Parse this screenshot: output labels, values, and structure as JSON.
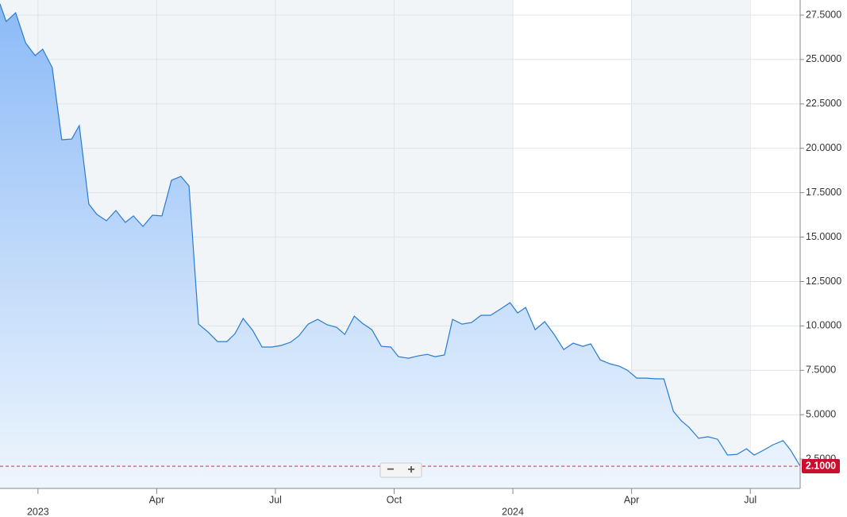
{
  "chart_data": {
    "type": "area",
    "x": [
      2022.92,
      2022.933,
      2022.953,
      2022.974,
      2022.994,
      2023.01,
      2023.03,
      2023.05,
      2023.071,
      2023.087,
      2023.107,
      2023.124,
      2023.144,
      2023.164,
      2023.184,
      2023.201,
      2023.221,
      2023.241,
      2023.261,
      2023.281,
      2023.301,
      2023.318,
      2023.338,
      2023.358,
      2023.378,
      2023.398,
      2023.415,
      2023.432,
      2023.452,
      2023.472,
      2023.492,
      2023.512,
      2023.532,
      2023.549,
      2023.569,
      2023.589,
      2023.609,
      2023.629,
      2023.646,
      2023.666,
      2023.683,
      2023.703,
      2023.723,
      2023.743,
      2023.759,
      2023.78,
      2023.8,
      2023.82,
      2023.836,
      2023.856,
      2023.873,
      2023.893,
      2023.913,
      2023.933,
      2023.953,
      2023.974,
      2023.994,
      2024.01,
      2024.027,
      2024.047,
      2024.067,
      2024.087,
      2024.107,
      2024.127,
      2024.147,
      2024.164,
      2024.184,
      2024.204,
      2024.224,
      2024.241,
      2024.261,
      2024.281,
      2024.301,
      2024.318,
      2024.338,
      2024.355,
      2024.371,
      2024.391,
      2024.411,
      2024.431,
      2024.452,
      2024.472,
      2024.492,
      2024.508,
      2024.528,
      2024.548,
      2024.569,
      2024.585,
      2024.605
    ],
    "values": [
      28.13,
      27.14,
      27.63,
      25.93,
      25.22,
      25.58,
      24.55,
      20.48,
      20.52,
      21.28,
      16.86,
      16.28,
      15.92,
      16.5,
      15.83,
      16.19,
      15.6,
      16.23,
      16.19,
      18.2,
      18.42,
      17.88,
      10.1,
      9.66,
      9.12,
      9.12,
      9.57,
      10.42,
      9.75,
      8.81,
      8.81,
      8.9,
      9.08,
      9.43,
      10.1,
      10.37,
      10.06,
      9.92,
      9.52,
      10.55,
      10.15,
      9.79,
      8.85,
      8.81,
      8.27,
      8.18,
      8.31,
      8.4,
      8.27,
      8.36,
      10.37,
      10.1,
      10.19,
      10.6,
      10.6,
      10.95,
      11.31,
      10.73,
      11.04,
      9.79,
      10.24,
      9.52,
      8.67,
      9.03,
      8.85,
      8.99,
      8.09,
      7.87,
      7.73,
      7.51,
      7.06,
      7.06,
      7.02,
      7.02,
      5.19,
      4.65,
      4.29,
      3.67,
      3.76,
      3.62,
      2.73,
      2.77,
      3.08,
      2.73,
      3.0,
      3.31,
      3.54,
      3.0,
      2.1
    ],
    "color": "#2a7bd0",
    "last_label": "2.1000",
    "xlim": [
      2022.92,
      2024.605
    ],
    "xticks": [
      {
        "value": 2023,
        "label": "2023"
      },
      {
        "value": 2023.25,
        "label": "Apr"
      },
      {
        "value": 2023.5,
        "label": "Jul"
      },
      {
        "value": 2023.75,
        "label": "Oct"
      },
      {
        "value": 2024,
        "label": "2024"
      },
      {
        "value": 2024.25,
        "label": "Apr"
      },
      {
        "value": 2024.5,
        "label": "Jul"
      }
    ],
    "ylim": [
      0.85,
      28.35
    ],
    "yticks": [
      {
        "value": 2.5,
        "label": "2.5000"
      },
      {
        "value": 5,
        "label": "5.0000"
      },
      {
        "value": 7.5,
        "label": "7.5000"
      },
      {
        "value": 10,
        "label": "10.0000"
      },
      {
        "value": 12.5,
        "label": "12.5000"
      },
      {
        "value": 15,
        "label": "15.0000"
      },
      {
        "value": 17.5,
        "label": "17.5000"
      },
      {
        "value": 20,
        "label": "20.0000"
      },
      {
        "value": 22.5,
        "label": "22.5000"
      },
      {
        "value": 25,
        "label": "25.0000"
      },
      {
        "value": 27.5,
        "label": "27.5000"
      }
    ],
    "grid": true
  },
  "zoom_controls": [
    "−",
    "+"
  ]
}
